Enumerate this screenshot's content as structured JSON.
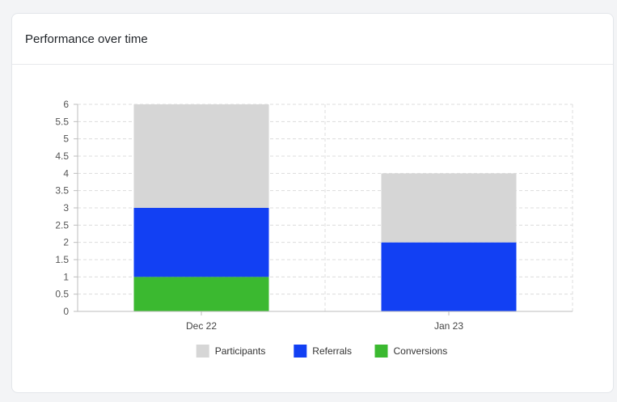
{
  "card": {
    "title": "Performance over time"
  },
  "chart_data": {
    "type": "bar",
    "stacked": true,
    "categories": [
      "Dec 22",
      "Jan 23"
    ],
    "series": [
      {
        "name": "Conversions",
        "color": "#3bb930",
        "values": [
          1,
          0
        ]
      },
      {
        "name": "Referrals",
        "color": "#1240f3",
        "values": [
          2,
          2
        ]
      },
      {
        "name": "Participants",
        "color": "#d6d6d6",
        "values": [
          3,
          2
        ]
      }
    ],
    "legend_order": [
      "Participants",
      "Referrals",
      "Conversions"
    ],
    "ylim": [
      0,
      6
    ],
    "yticks": [
      "0",
      "0.5",
      "1",
      "1.5",
      "2",
      "2.5",
      "3",
      "3.5",
      "4",
      "4.5",
      "5",
      "5.5",
      "6"
    ],
    "grid": true,
    "legend_position": "bottom"
  }
}
